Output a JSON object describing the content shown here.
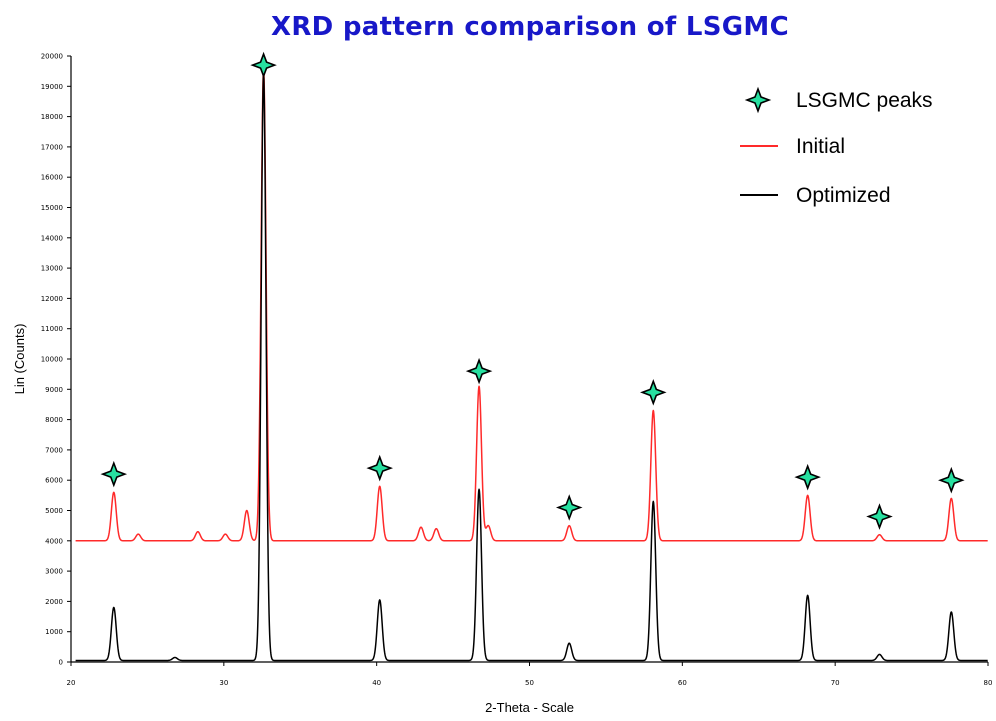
{
  "chart_data": {
    "type": "line",
    "title": "XRD pattern comparison of LSGMC",
    "xlabel": "2-Theta - Scale",
    "ylabel": "Lin (Counts)",
    "xlim": [
      20,
      80
    ],
    "ylim": [
      0,
      20000
    ],
    "xticks": [
      20,
      30,
      40,
      50,
      60,
      70,
      80
    ],
    "yticks": [
      0,
      1000,
      2000,
      3000,
      4000,
      5000,
      6000,
      7000,
      8000,
      9000,
      10000,
      11000,
      12000,
      13000,
      14000,
      15000,
      16000,
      17000,
      18000,
      19000,
      20000
    ],
    "grid": false,
    "legend_position": "top-right",
    "legend": [
      "LSGMC peaks",
      "Initial",
      "Optimized"
    ],
    "colors": {
      "initial": "#ff2a2a",
      "optimized": "#000000",
      "marker_fill": "#27e0a0",
      "title": "#1818c8"
    },
    "series": [
      {
        "name": "Initial",
        "baseline": 4000,
        "peaks": [
          {
            "x": 22.8,
            "y": 5600
          },
          {
            "x": 24.4,
            "y": 4220
          },
          {
            "x": 28.3,
            "y": 4300
          },
          {
            "x": 30.1,
            "y": 4220
          },
          {
            "x": 31.5,
            "y": 5000
          },
          {
            "x": 32.6,
            "y": 19600
          },
          {
            "x": 40.2,
            "y": 5800
          },
          {
            "x": 42.9,
            "y": 4450
          },
          {
            "x": 43.9,
            "y": 4400
          },
          {
            "x": 46.7,
            "y": 9100
          },
          {
            "x": 47.3,
            "y": 4500
          },
          {
            "x": 52.6,
            "y": 4500
          },
          {
            "x": 58.1,
            "y": 8300
          },
          {
            "x": 68.2,
            "y": 5500
          },
          {
            "x": 72.9,
            "y": 4200
          },
          {
            "x": 77.6,
            "y": 5400
          }
        ]
      },
      {
        "name": "Optimized",
        "baseline": 50,
        "peaks": [
          {
            "x": 22.8,
            "y": 1800
          },
          {
            "x": 26.8,
            "y": 150
          },
          {
            "x": 32.6,
            "y": 19400
          },
          {
            "x": 40.2,
            "y": 2050
          },
          {
            "x": 46.7,
            "y": 5700
          },
          {
            "x": 52.6,
            "y": 620
          },
          {
            "x": 58.1,
            "y": 5300
          },
          {
            "x": 68.2,
            "y": 2200
          },
          {
            "x": 72.9,
            "y": 250
          },
          {
            "x": 77.6,
            "y": 1650
          }
        ]
      }
    ],
    "lsgmc_peak_markers": [
      {
        "x": 22.8,
        "y": 6200
      },
      {
        "x": 32.6,
        "y": 19700
      },
      {
        "x": 40.2,
        "y": 6400
      },
      {
        "x": 46.7,
        "y": 9600
      },
      {
        "x": 52.6,
        "y": 5100
      },
      {
        "x": 58.1,
        "y": 8900
      },
      {
        "x": 68.2,
        "y": 6100
      },
      {
        "x": 72.9,
        "y": 4800
      },
      {
        "x": 77.6,
        "y": 6000
      }
    ]
  }
}
